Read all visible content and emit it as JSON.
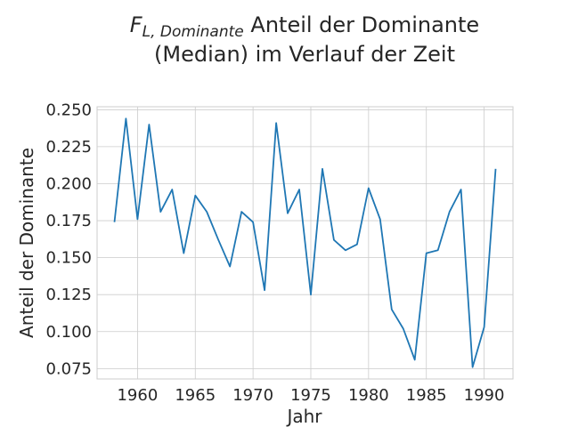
{
  "chart_data": {
    "type": "line",
    "title": {
      "symbol_main": "F",
      "symbol_sub": "L, Dominante",
      "line1_rest": "Anteil der Dominante",
      "line2": "(Median) im Verlauf der Zeit"
    },
    "xlabel": "Jahr",
    "ylabel": "Anteil der Dominante",
    "xlim": [
      1956.5,
      1992.5
    ],
    "ylim": [
      0.068,
      0.252
    ],
    "xticks": [
      1960,
      1965,
      1970,
      1975,
      1980,
      1985,
      1990
    ],
    "yticks": [
      0.075,
      0.1,
      0.125,
      0.15,
      0.175,
      0.2,
      0.225,
      0.25
    ],
    "ytick_labels": [
      "0.075",
      "0.100",
      "0.125",
      "0.150",
      "0.175",
      "0.200",
      "0.225",
      "0.250"
    ],
    "grid": true,
    "series": [
      {
        "color": "#1f77b4",
        "x": [
          1958,
          1959,
          1960,
          1961,
          1962,
          1963,
          1964,
          1965,
          1966,
          1967,
          1968,
          1969,
          1970,
          1971,
          1972,
          1973,
          1974,
          1975,
          1976,
          1977,
          1978,
          1979,
          1980,
          1981,
          1982,
          1983,
          1984,
          1985,
          1986,
          1987,
          1988,
          1989,
          1990,
          1991
        ],
        "y": [
          0.174,
          0.244,
          0.176,
          0.24,
          0.181,
          0.196,
          0.153,
          0.192,
          0.181,
          0.162,
          0.144,
          0.181,
          0.174,
          0.128,
          0.241,
          0.18,
          0.196,
          0.125,
          0.21,
          0.162,
          0.155,
          0.159,
          0.197,
          0.176,
          0.115,
          0.102,
          0.081,
          0.153,
          0.155,
          0.181,
          0.196,
          0.076,
          0.103,
          0.21
        ]
      }
    ]
  }
}
